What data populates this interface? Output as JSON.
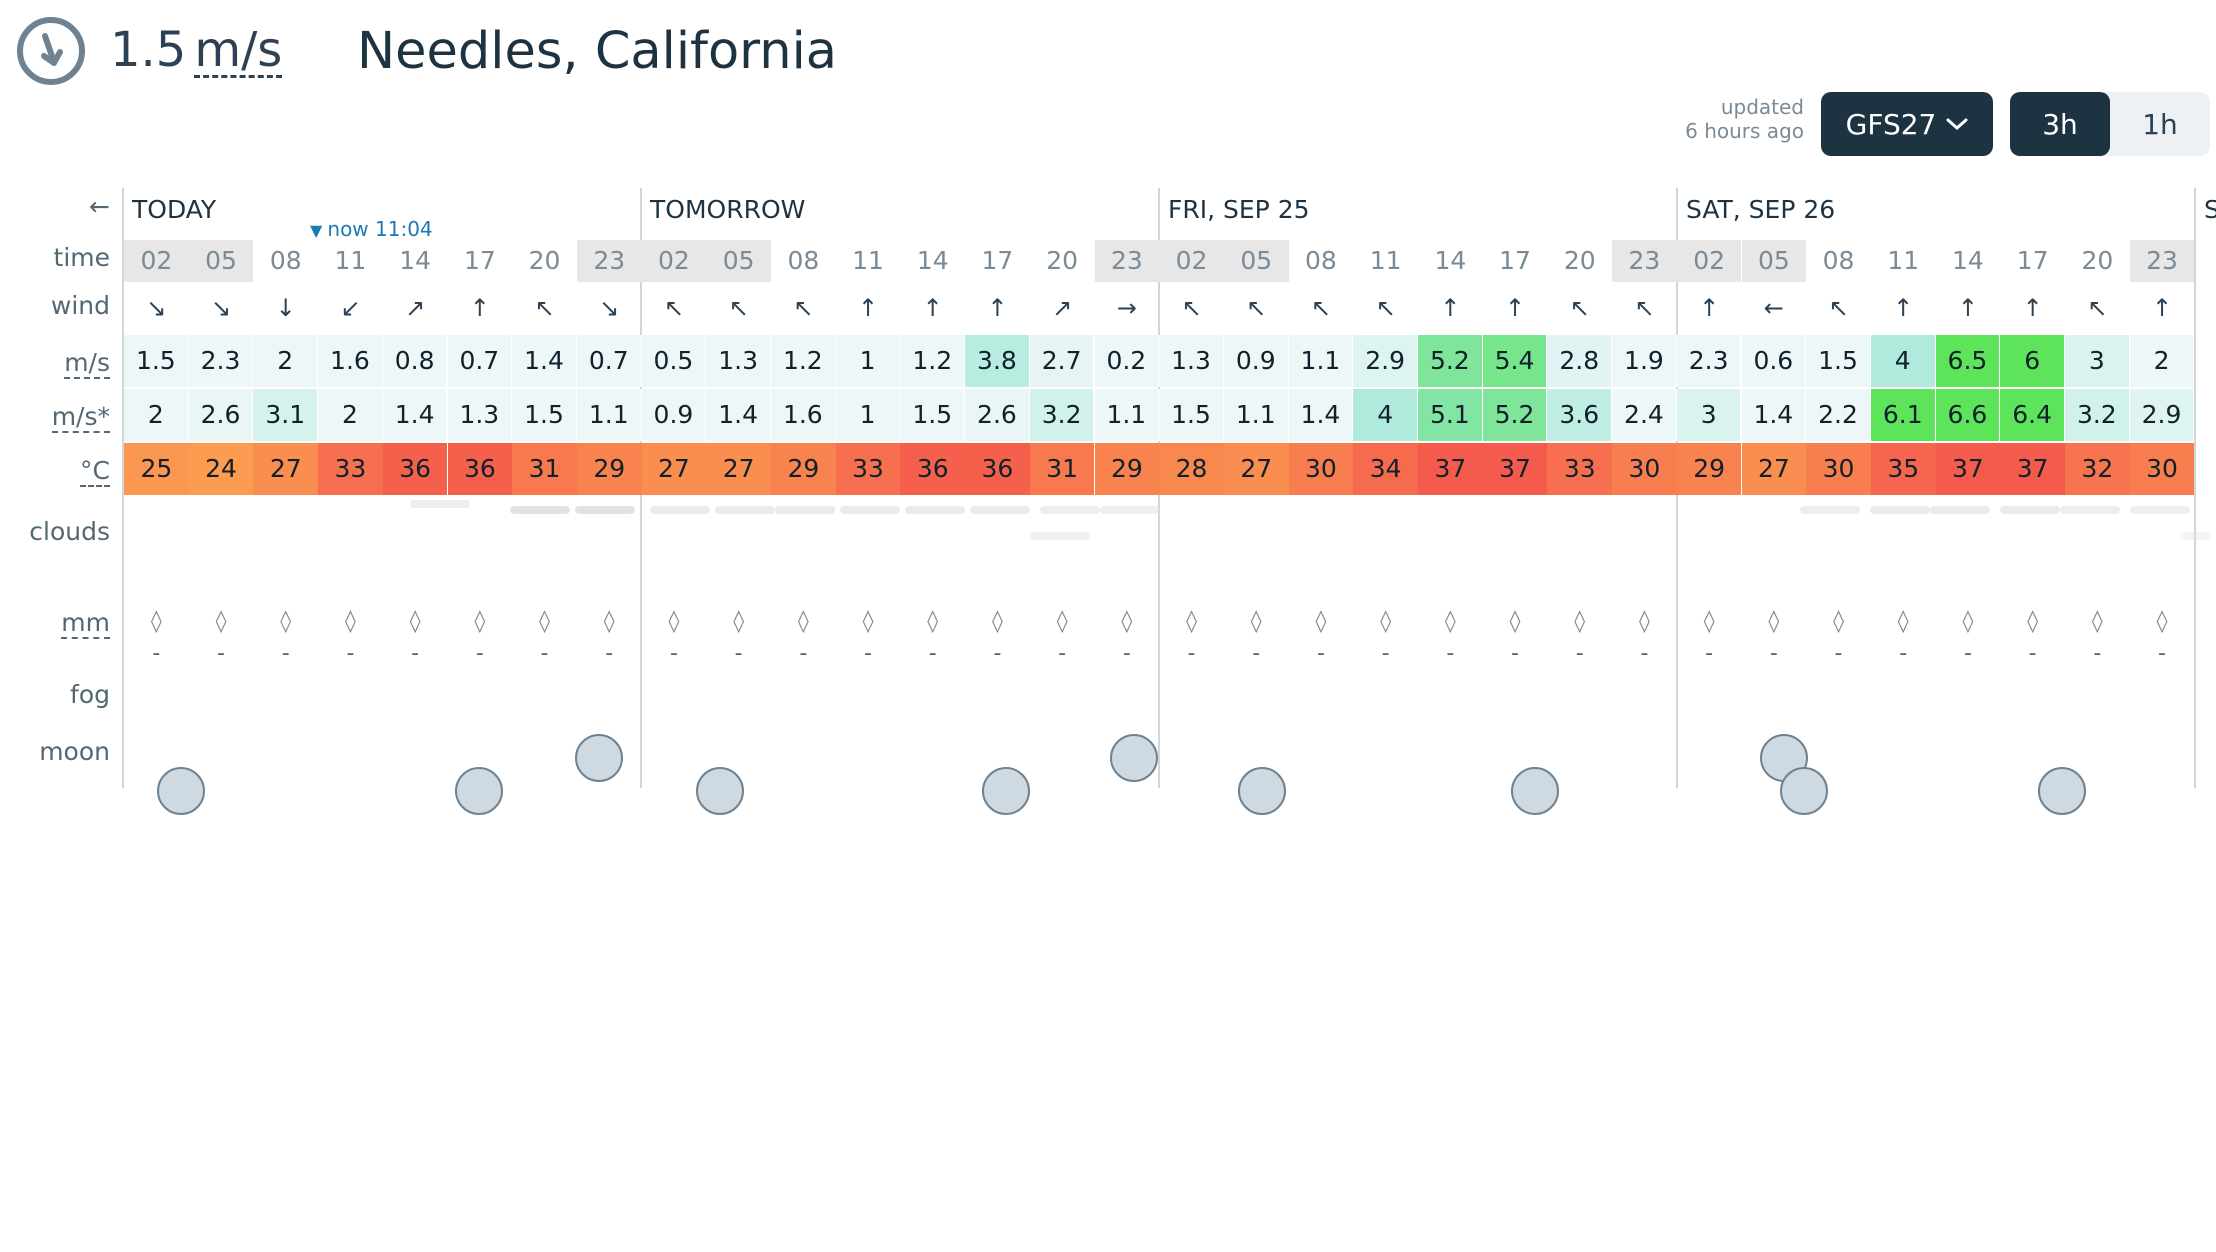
{
  "header": {
    "wind_value": "1.5",
    "wind_unit": "m/s",
    "location": "Needles, California",
    "updated_line1": "updated",
    "updated_line2": "6 hours ago",
    "model_label": "GFS27",
    "step_options": [
      "3h",
      "1h"
    ],
    "selected_step": "3h"
  },
  "labels": {
    "back": "←",
    "time": "time",
    "wind": "wind",
    "speed": "m/s",
    "gust": "m/s*",
    "temp": "°C",
    "clouds": "clouds",
    "precip": "mm",
    "fog": "fog",
    "moon": "moon"
  },
  "now_marker": "now 11:04",
  "days": [
    {
      "label": "TODAY"
    },
    {
      "label": "TOMORROW"
    },
    {
      "label": "FRI, SEP 25"
    },
    {
      "label": "SAT, SEP 26"
    },
    {
      "label": "S"
    }
  ],
  "hours": [
    "02",
    "05",
    "08",
    "11",
    "14",
    "17",
    "20",
    "23"
  ],
  "night_hours": [
    "02",
    "05",
    "23"
  ],
  "rain_drop_glyph": "◊",
  "rain_value": "-",
  "columns": [
    {
      "day": 0,
      "h": "02",
      "dir": "↘",
      "spd": "1.5",
      "gst": "2",
      "t": "25"
    },
    {
      "day": 0,
      "h": "05",
      "dir": "↘",
      "spd": "2.3",
      "gst": "2.6",
      "t": "24"
    },
    {
      "day": 0,
      "h": "08",
      "dir": "↓",
      "spd": "2",
      "gst": "3.1",
      "t": "27"
    },
    {
      "day": 0,
      "h": "11",
      "dir": "↙",
      "spd": "1.6",
      "gst": "2",
      "t": "33"
    },
    {
      "day": 0,
      "h": "14",
      "dir": "↗",
      "spd": "0.8",
      "gst": "1.4",
      "t": "36"
    },
    {
      "day": 0,
      "h": "17",
      "dir": "↑",
      "spd": "0.7",
      "gst": "1.3",
      "t": "36"
    },
    {
      "day": 0,
      "h": "20",
      "dir": "↖",
      "spd": "1.4",
      "gst": "1.5",
      "t": "31"
    },
    {
      "day": 0,
      "h": "23",
      "dir": "↘",
      "spd": "0.7",
      "gst": "1.1",
      "t": "29"
    },
    {
      "day": 1,
      "h": "02",
      "dir": "↖",
      "spd": "0.5",
      "gst": "0.9",
      "t": "27"
    },
    {
      "day": 1,
      "h": "05",
      "dir": "↖",
      "spd": "1.3",
      "gst": "1.4",
      "t": "27"
    },
    {
      "day": 1,
      "h": "08",
      "dir": "↖",
      "spd": "1.2",
      "gst": "1.6",
      "t": "29"
    },
    {
      "day": 1,
      "h": "11",
      "dir": "↑",
      "spd": "1",
      "gst": "1",
      "t": "33"
    },
    {
      "day": 1,
      "h": "14",
      "dir": "↑",
      "spd": "1.2",
      "gst": "1.5",
      "t": "36"
    },
    {
      "day": 1,
      "h": "17",
      "dir": "↑",
      "spd": "3.8",
      "gst": "2.6",
      "t": "36"
    },
    {
      "day": 1,
      "h": "20",
      "dir": "↗",
      "spd": "2.7",
      "gst": "3.2",
      "t": "31"
    },
    {
      "day": 1,
      "h": "23",
      "dir": "→",
      "spd": "0.2",
      "gst": "1.1",
      "t": "29"
    },
    {
      "day": 2,
      "h": "02",
      "dir": "↖",
      "spd": "1.3",
      "gst": "1.5",
      "t": "28"
    },
    {
      "day": 2,
      "h": "05",
      "dir": "↖",
      "spd": "0.9",
      "gst": "1.1",
      "t": "27"
    },
    {
      "day": 2,
      "h": "08",
      "dir": "↖",
      "spd": "1.1",
      "gst": "1.4",
      "t": "30"
    },
    {
      "day": 2,
      "h": "11",
      "dir": "↖",
      "spd": "2.9",
      "gst": "4",
      "t": "34"
    },
    {
      "day": 2,
      "h": "14",
      "dir": "↑",
      "spd": "5.2",
      "gst": "5.1",
      "t": "37"
    },
    {
      "day": 2,
      "h": "17",
      "dir": "↑",
      "spd": "5.4",
      "gst": "5.2",
      "t": "37"
    },
    {
      "day": 2,
      "h": "20",
      "dir": "↖",
      "spd": "2.8",
      "gst": "3.6",
      "t": "33"
    },
    {
      "day": 2,
      "h": "23",
      "dir": "↖",
      "spd": "1.9",
      "gst": "2.4",
      "t": "30"
    },
    {
      "day": 3,
      "h": "02",
      "dir": "↑",
      "spd": "2.3",
      "gst": "3",
      "t": "29"
    },
    {
      "day": 3,
      "h": "05",
      "dir": "←",
      "spd": "0.6",
      "gst": "1.4",
      "t": "27"
    },
    {
      "day": 3,
      "h": "08",
      "dir": "↖",
      "spd": "1.5",
      "gst": "2.2",
      "t": "30"
    },
    {
      "day": 3,
      "h": "11",
      "dir": "↑",
      "spd": "4",
      "gst": "6.1",
      "t": "35"
    },
    {
      "day": 3,
      "h": "14",
      "dir": "↑",
      "spd": "6.5",
      "gst": "6.6",
      "t": "37"
    },
    {
      "day": 3,
      "h": "17",
      "dir": "↑",
      "spd": "6",
      "gst": "6.4",
      "t": "37"
    },
    {
      "day": 3,
      "h": "20",
      "dir": "↖",
      "spd": "3",
      "gst": "3.2",
      "t": "32"
    },
    {
      "day": 3,
      "h": "23",
      "dir": "↑",
      "spd": "2",
      "gst": "2.9",
      "t": "30"
    }
  ],
  "colors": {
    "dark": "#1e3342",
    "night_bg": "#e7e7e7",
    "wind_calm": "#eef7f8",
    "wind_mid": "#9ae6d4",
    "wind_strong": "#5ee45a",
    "temp_cool": "#fb9c51",
    "temp_hot": "#f55b4c",
    "accent_blue": "#1f78b4"
  }
}
